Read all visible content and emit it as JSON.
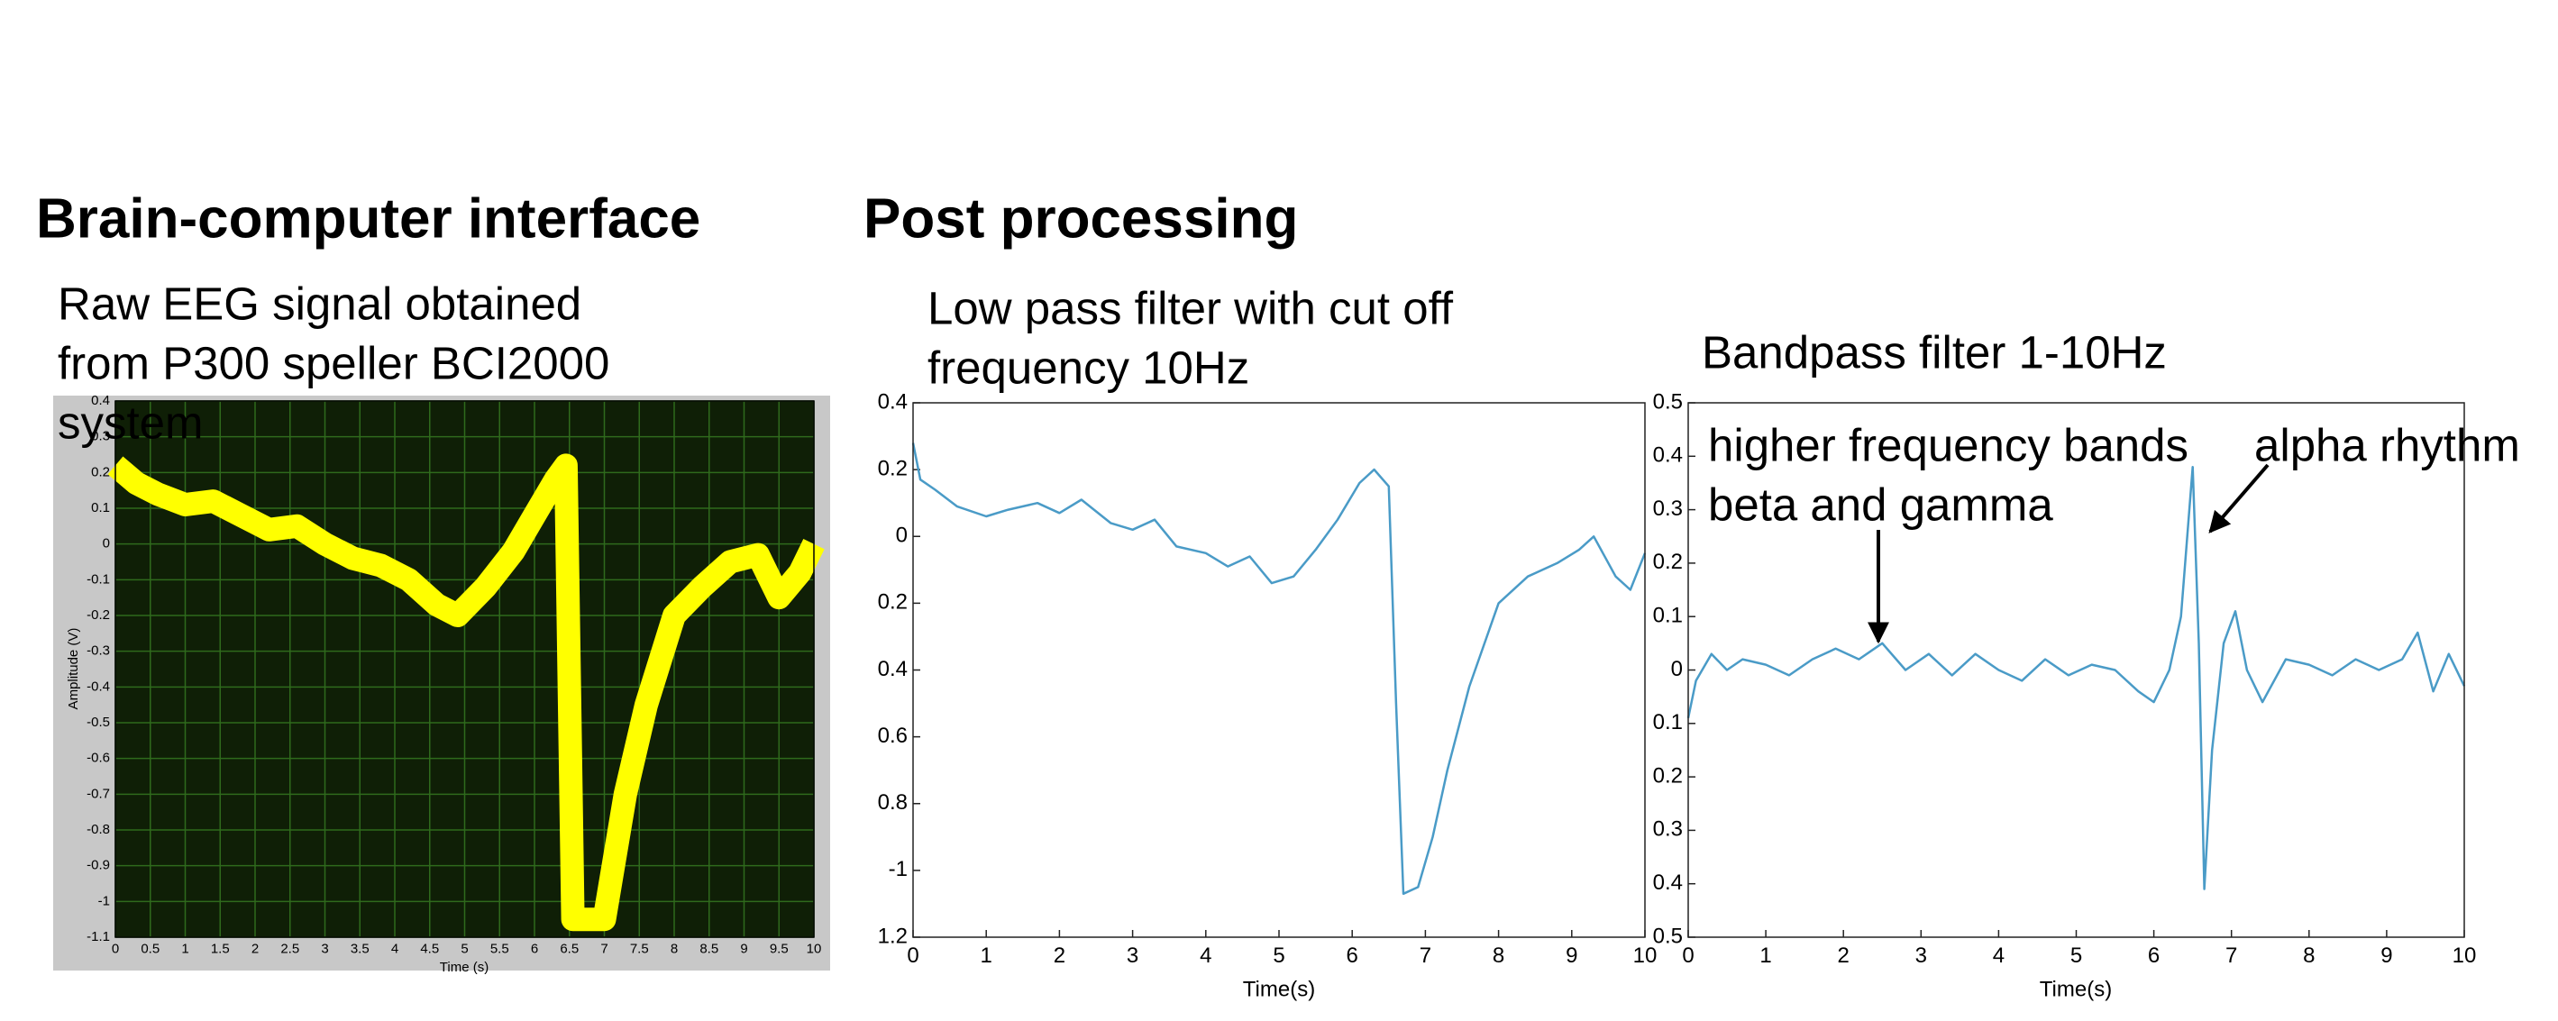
{
  "headings": [
    "Brain-computer interface",
    "Post processing"
  ],
  "chart_data": [
    {
      "type": "line",
      "title": [
        "Raw EEG signal obtained",
        "from P300 speller BCI2000",
        "system"
      ],
      "xlabel": "Time (s)",
      "ylabel": "Amplitude (V)",
      "background": "#0f1f06",
      "grid": true,
      "x": [
        0,
        0.3,
        0.6,
        1,
        1.4,
        1.8,
        2.2,
        2.6,
        3,
        3.4,
        3.8,
        4.2,
        4.6,
        4.9,
        5.3,
        5.7,
        6,
        6.3,
        6.45,
        6.55,
        6.8,
        7,
        7.3,
        7.6,
        8,
        8.4,
        8.8,
        9.2,
        9.5,
        9.8,
        10
      ],
      "series": [
        {
          "color": "#ffff00",
          "values": [
            0.22,
            0.17,
            0.14,
            0.11,
            0.12,
            0.08,
            0.04,
            0.05,
            0.0,
            -0.04,
            -0.06,
            -0.1,
            -0.17,
            -0.2,
            -0.12,
            -0.02,
            0.08,
            0.18,
            0.22,
            -1.05,
            -1.05,
            -1.05,
            -0.7,
            -0.45,
            -0.2,
            -0.12,
            -0.05,
            -0.03,
            -0.15,
            -0.08,
            0.0
          ]
        }
      ],
      "xlim": [
        0,
        10
      ],
      "ylim": [
        -1.1,
        0.4
      ],
      "xticks": [
        0,
        0.5,
        1,
        1.5,
        2,
        2.5,
        3,
        3.5,
        4,
        4.5,
        5,
        5.5,
        6,
        6.5,
        7,
        7.5,
        8,
        8.5,
        9,
        9.5,
        10
      ],
      "yticks": [
        0.4,
        0.3,
        0.2,
        0.1,
        0,
        -0.1,
        -0.2,
        -0.3,
        -0.4,
        -0.5,
        -0.6,
        -0.7,
        -0.8,
        -0.9,
        -1,
        -1.1
      ]
    },
    {
      "type": "line",
      "title": [
        "Low pass filter with cut off",
        "frequency 10Hz"
      ],
      "xlabel": "Time(s)",
      "x": [
        0,
        0.1,
        0.3,
        0.6,
        1,
        1.3,
        1.7,
        2,
        2.3,
        2.7,
        3,
        3.3,
        3.6,
        4,
        4.3,
        4.6,
        4.9,
        5.2,
        5.5,
        5.8,
        6.1,
        6.3,
        6.5,
        6.6,
        6.7,
        6.9,
        7.1,
        7.3,
        7.6,
        8,
        8.4,
        8.8,
        9.1,
        9.3,
        9.6,
        9.8,
        10
      ],
      "series": [
        {
          "color": "#4a9bc7",
          "values": [
            0.28,
            0.17,
            0.14,
            0.09,
            0.06,
            0.08,
            0.1,
            0.07,
            0.11,
            0.04,
            0.02,
            0.05,
            -0.03,
            -0.05,
            -0.09,
            -0.06,
            -0.14,
            -0.12,
            -0.04,
            0.05,
            0.16,
            0.2,
            0.15,
            -0.5,
            -1.07,
            -1.05,
            -0.9,
            -0.7,
            -0.45,
            -0.2,
            -0.12,
            -0.08,
            -0.04,
            0.0,
            -0.12,
            -0.16,
            -0.05
          ]
        }
      ],
      "xlim": [
        0,
        10
      ],
      "ylim": [
        -1.2,
        0.4
      ],
      "xticks": [
        0,
        1,
        2,
        3,
        4,
        5,
        6,
        7,
        8,
        9,
        10
      ],
      "yticks": [
        0.4,
        0.2,
        0,
        {
          "value": -0.2,
          "label": "0.2"
        },
        {
          "value": -0.4,
          "label": "0.4"
        },
        {
          "value": -0.6,
          "label": "0.6"
        },
        {
          "value": -0.8,
          "label": "0.8"
        },
        -1,
        {
          "value": -1.2,
          "label": "1.2"
        }
      ]
    },
    {
      "type": "line",
      "title": [
        "Bandpass filter 1-10Hz"
      ],
      "xlabel": "Time(s)",
      "annotations": [
        "higher frequency bands",
        "beta and gamma",
        "alpha rhythm"
      ],
      "x": [
        0,
        0.1,
        0.3,
        0.5,
        0.7,
        1,
        1.3,
        1.6,
        1.9,
        2.2,
        2.5,
        2.8,
        3.1,
        3.4,
        3.7,
        4,
        4.3,
        4.6,
        4.9,
        5.2,
        5.5,
        5.8,
        6.0,
        6.2,
        6.35,
        6.5,
        6.58,
        6.65,
        6.75,
        6.9,
        7.05,
        7.2,
        7.4,
        7.7,
        8,
        8.3,
        8.6,
        8.9,
        9.2,
        9.4,
        9.6,
        9.8,
        10
      ],
      "series": [
        {
          "color": "#4a9bc7",
          "values": [
            -0.09,
            -0.02,
            0.03,
            0.0,
            0.02,
            0.01,
            -0.01,
            0.02,
            0.04,
            0.02,
            0.05,
            0.0,
            0.03,
            -0.01,
            0.03,
            0.0,
            -0.02,
            0.02,
            -0.01,
            0.01,
            0.0,
            -0.04,
            -0.06,
            0.0,
            0.1,
            0.38,
            0.05,
            -0.41,
            -0.15,
            0.05,
            0.11,
            0.0,
            -0.06,
            0.02,
            0.01,
            -0.01,
            0.02,
            0.0,
            0.02,
            0.07,
            -0.04,
            0.03,
            -0.03
          ]
        }
      ],
      "xlim": [
        0,
        10
      ],
      "ylim": [
        -0.5,
        0.5
      ],
      "xticks": [
        0,
        1,
        2,
        3,
        4,
        5,
        6,
        7,
        8,
        9,
        10
      ],
      "yticks": [
        0.5,
        0.4,
        0.3,
        0.2,
        0.1,
        0,
        {
          "value": -0.1,
          "label": "0.1"
        },
        {
          "value": -0.2,
          "label": "0.2"
        },
        {
          "value": -0.3,
          "label": "0.3"
        },
        {
          "value": -0.4,
          "label": "0.4"
        },
        {
          "value": -0.5,
          "label": "0.5"
        }
      ]
    }
  ]
}
